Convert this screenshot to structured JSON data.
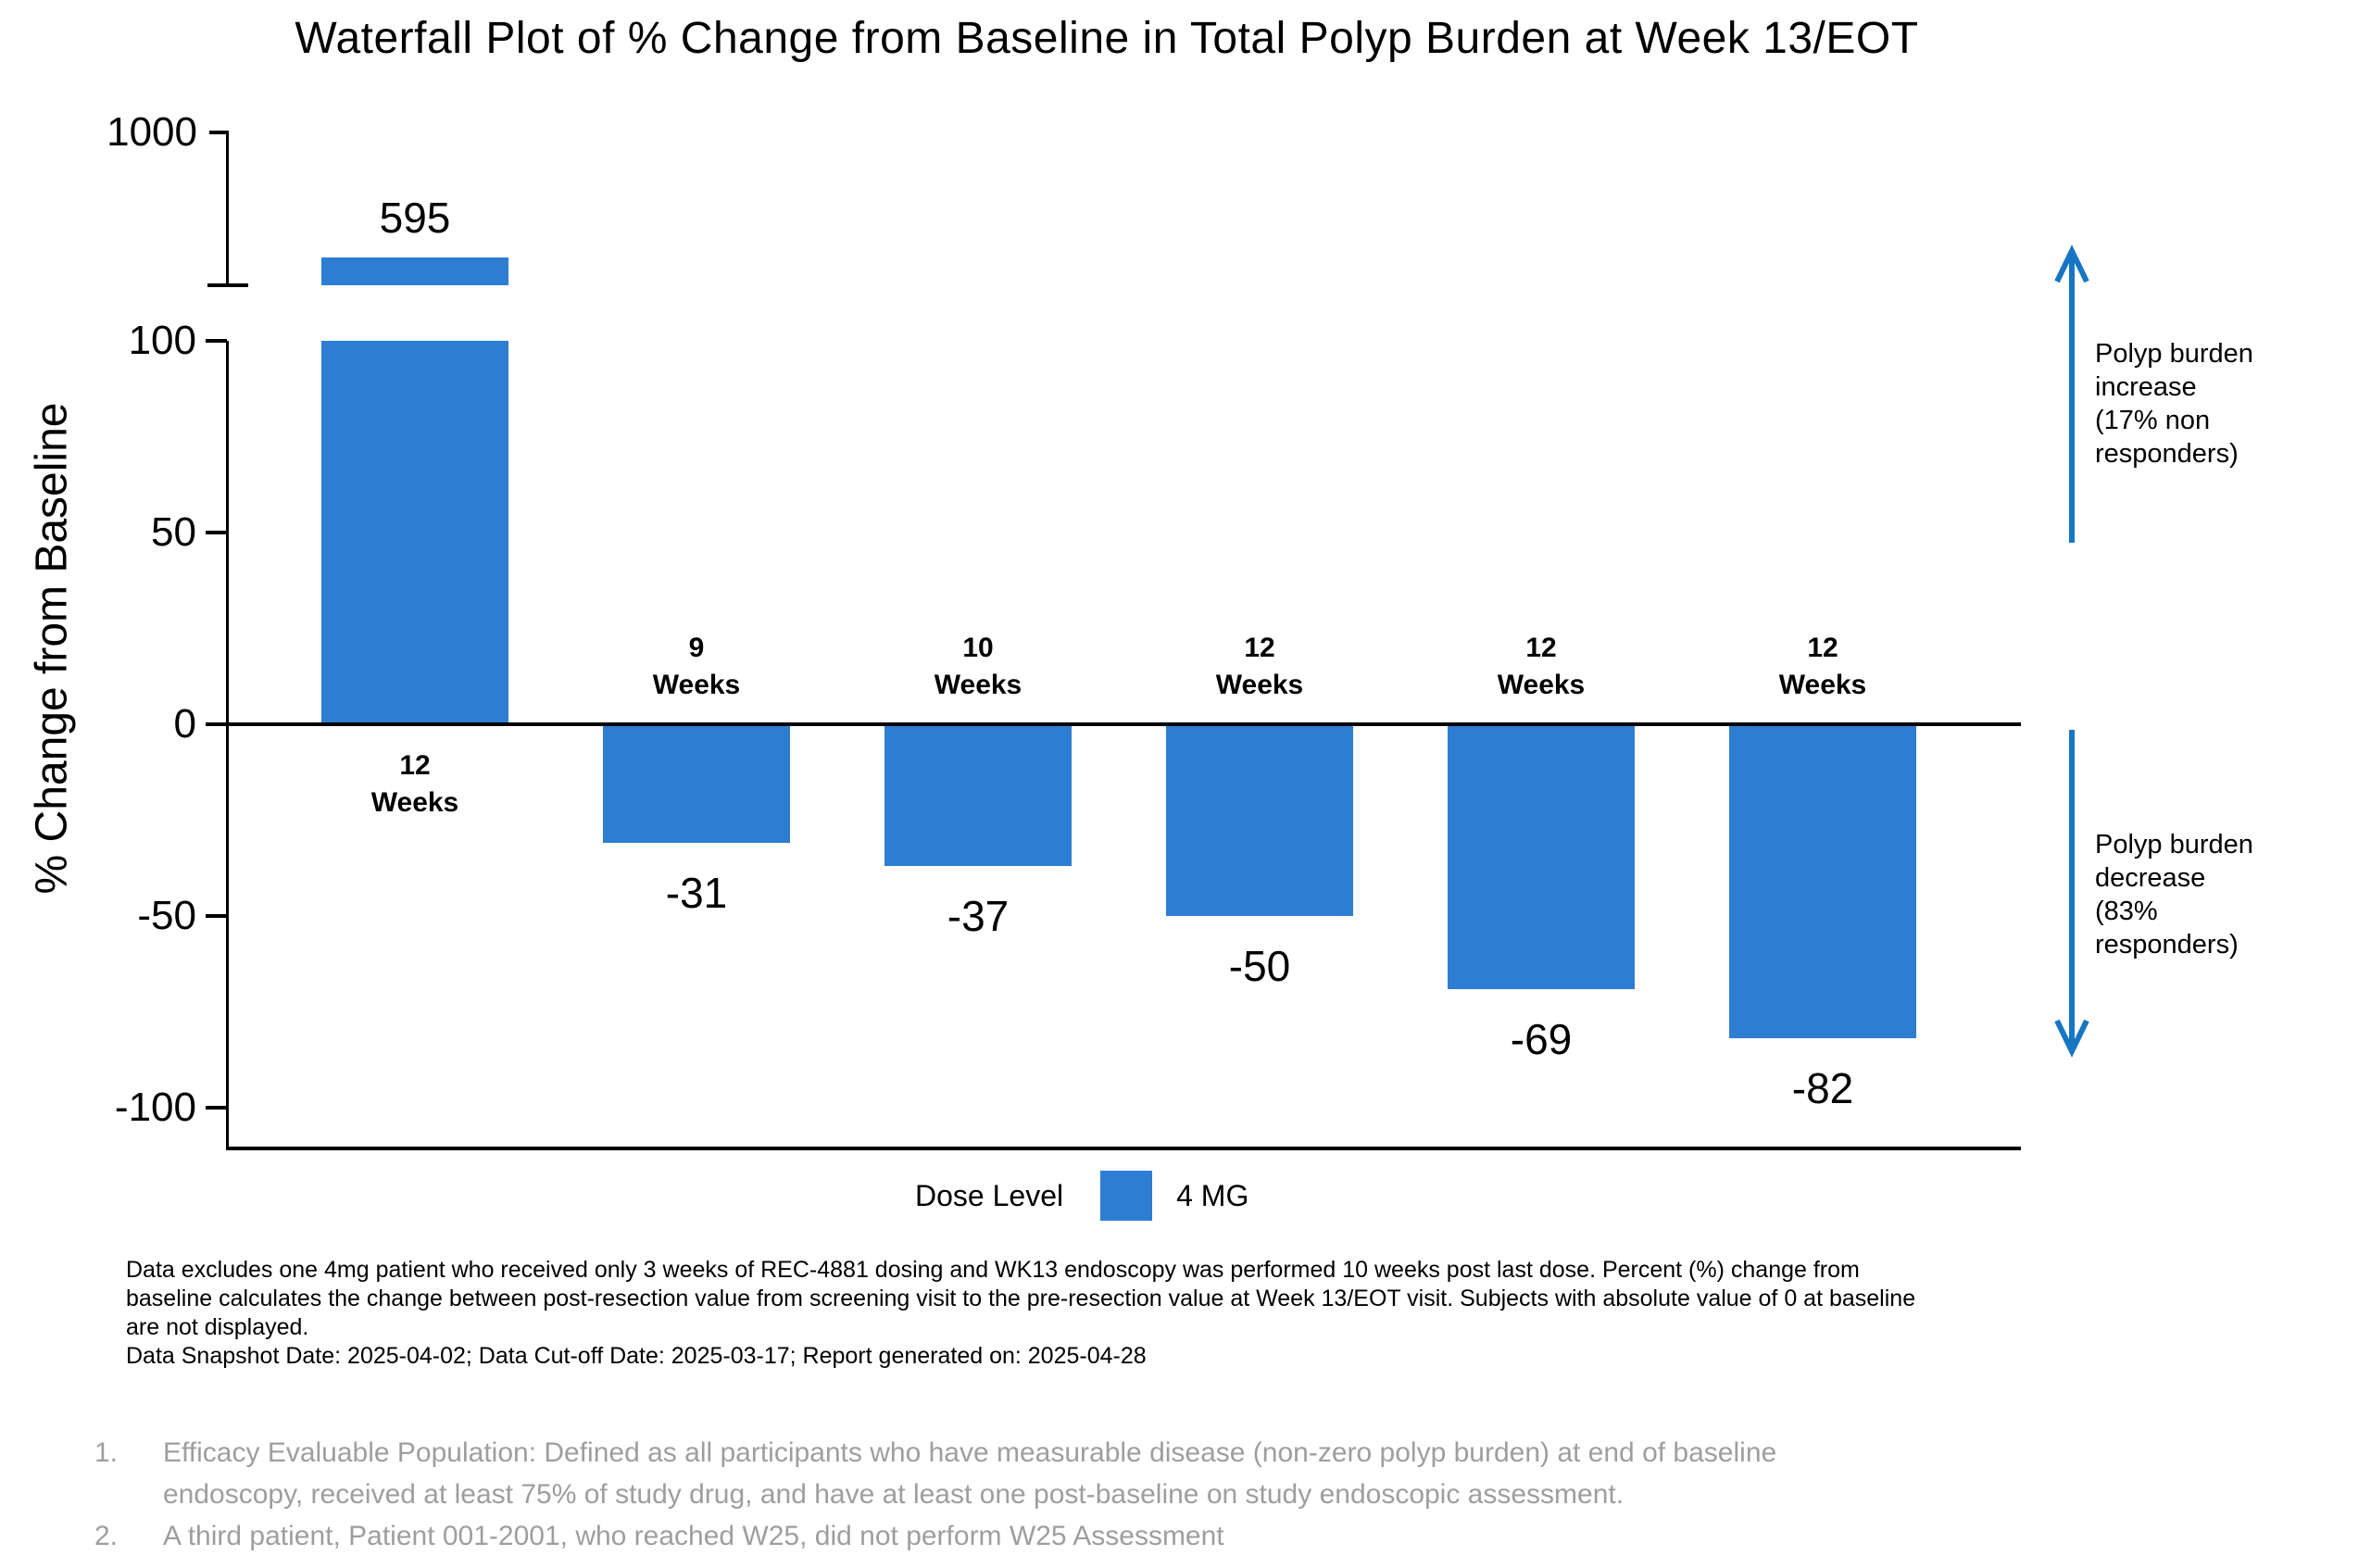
{
  "title": "Waterfall Plot of % Change from Baseline in Total Polyp Burden at Week 13/EOT",
  "y_axis": {
    "label": "% Change from Baseline",
    "break_tick": "1000",
    "ticks": [
      "100",
      "50",
      "0",
      "-50",
      "-100"
    ]
  },
  "chart_data": {
    "type": "bar",
    "subtype": "waterfall",
    "title": "Waterfall Plot of % Change from Baseline in Total Polyp Burden at Week 13/EOT",
    "xlabel": "",
    "ylabel": "% Change from Baseline",
    "categories": [
      "12 Weeks",
      "9 Weeks",
      "10 Weeks",
      "12 Weeks",
      "12 Weeks",
      "12 Weeks"
    ],
    "values": [
      595,
      -31,
      -37,
      -50,
      -69,
      -82
    ],
    "ylim": [
      -110,
      110
    ],
    "yticks": [
      1000,
      100,
      50,
      0,
      -50,
      -100
    ],
    "axis_break": "y-axis broken between 100 and 1000; first bar (595) clipped at break",
    "grid": false,
    "bar_color": "#2D7ED2",
    "legend_position": "bottom",
    "bars": [
      {
        "weeks_line1": "12",
        "weeks_line2": "Weeks",
        "value": 595,
        "value_label": "595",
        "clipped_at_break": true
      },
      {
        "weeks_line1": "9",
        "weeks_line2": "Weeks",
        "value": -31,
        "value_label": "-31"
      },
      {
        "weeks_line1": "10",
        "weeks_line2": "Weeks",
        "value": -37,
        "value_label": "-37"
      },
      {
        "weeks_line1": "12",
        "weeks_line2": "Weeks",
        "value": -50,
        "value_label": "-50"
      },
      {
        "weeks_line1": "12",
        "weeks_line2": "Weeks",
        "value": -69,
        "value_label": "-69"
      },
      {
        "weeks_line1": "12",
        "weeks_line2": "Weeks",
        "value": -82,
        "value_label": "-82"
      }
    ],
    "annotations": [
      {
        "direction": "up",
        "lines": [
          "Polyp burden",
          "increase",
          "(17% non",
          "responders)"
        ]
      },
      {
        "direction": "down",
        "lines": [
          "Polyp burden",
          "decrease",
          "(83%",
          "responders)"
        ]
      }
    ]
  },
  "legend": {
    "title": "Dose Level",
    "entries": [
      {
        "label": "4 MG",
        "color": "#2D7ED2"
      }
    ]
  },
  "footnotes": {
    "lines": [
      "Data excludes one 4mg patient who received only 3 weeks of REC-4881 dosing and WK13 endoscopy was performed 10 weeks post last dose. Percent (%) change from",
      "baseline calculates the change between post-resection value from screening visit to the pre-resection value at Week 13/EOT visit. Subjects with absolute value of 0 at baseline",
      "are not displayed.",
      "Data Snapshot Date: 2025-04-02; Data Cut-off Date: 2025-03-17; Report generated on: 2025-04-28"
    ]
  },
  "notes": [
    {
      "num": "1.",
      "lines": [
        "Efficacy Evaluable Population: Defined as all participants who have measurable disease (non-zero polyp burden) at end of baseline",
        "endoscopy, received at least 75% of study drug, and have at least one post-baseline on study endoscopic assessment."
      ]
    },
    {
      "num": "2.",
      "lines": [
        "A third patient, Patient 001-2001, who reached W25, did not perform W25 Assessment"
      ]
    }
  ],
  "colors": {
    "bar": "#2D7ED2",
    "arrow": "#1776C4",
    "axis": "#000000",
    "notes_gray": "#9E9E9E"
  }
}
